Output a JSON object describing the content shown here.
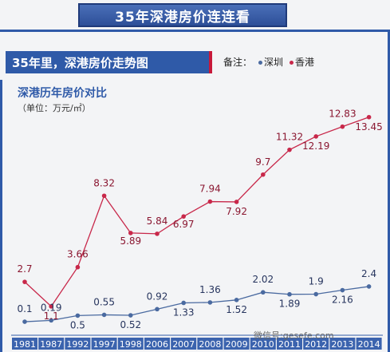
{
  "header": {
    "title": "35年深港房价连连看"
  },
  "subheader": {
    "title": "35年里，深港房价走势图"
  },
  "legend": {
    "label": "备注：",
    "items": [
      {
        "name": "深圳",
        "color": "#4a6aa0"
      },
      {
        "name": "香港",
        "color": "#c8284a"
      }
    ]
  },
  "watermark": "微信号:gesefe.com",
  "chart_data": {
    "type": "line",
    "title": "深港历年房价对比",
    "ylabel": "（单位：万元/㎡）",
    "xlabel": "",
    "categories": [
      "1981",
      "1987",
      "1992",
      "1997",
      "1998",
      "2006",
      "2007",
      "2008",
      "2009",
      "2010",
      "2011",
      "2012",
      "2013",
      "2014"
    ],
    "series": [
      {
        "name": "深圳",
        "color": "#4a6aa0",
        "values": [
          0.1,
          0.19,
          0.5,
          0.55,
          0.52,
          0.92,
          1.33,
          1.36,
          1.52,
          2.02,
          1.89,
          1.9,
          2.16,
          2.4
        ]
      },
      {
        "name": "香港",
        "color": "#c8284a",
        "values": [
          2.7,
          1.1,
          3.66,
          8.32,
          5.89,
          5.84,
          6.97,
          7.94,
          7.92,
          9.7,
          11.32,
          12.19,
          12.83,
          13.45
        ]
      }
    ],
    "ylim": [
      0,
      14
    ],
    "grid": false,
    "legend_position": "top-right"
  }
}
